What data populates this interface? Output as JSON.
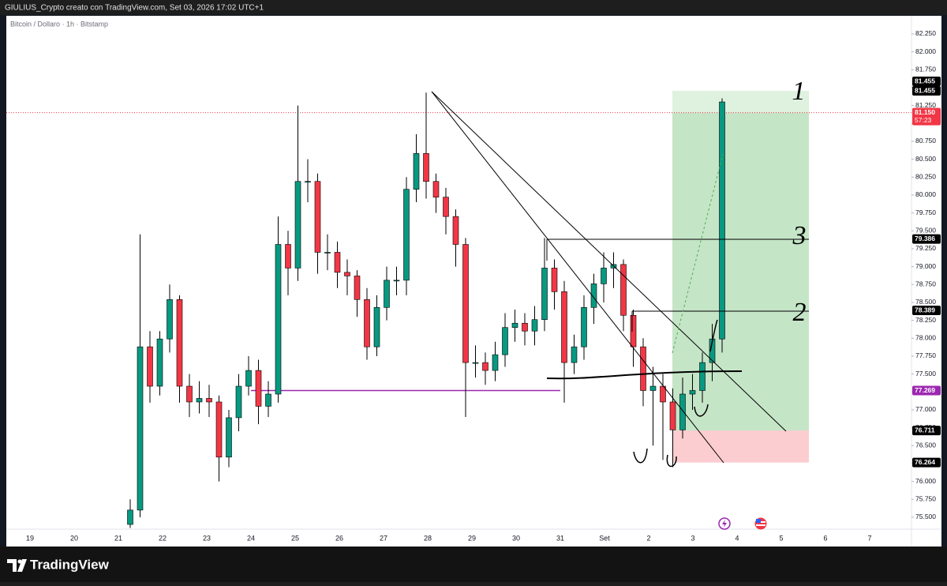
{
  "header": {
    "caption": "GIULIUS_Crypto creato con TradingView.com, Set 03, 2026 17:02 UTC+1"
  },
  "footer": {
    "brand": "TradingView"
  },
  "chart_data": {
    "type": "candlestick",
    "title": "Bitcoin / Dollaro · 1h · Bitstamp",
    "up_color": "#089981",
    "down_color": "#f23645",
    "categories": [
      null,
      null,
      null,
      null,
      null,
      null,
      null,
      null,
      null,
      null,
      null,
      null,
      null,
      null,
      null,
      null,
      null,
      null,
      null,
      null,
      null,
      null,
      null,
      null,
      null,
      null,
      null,
      null,
      null,
      null,
      null,
      null,
      null,
      null,
      null,
      null,
      null,
      null,
      null,
      null,
      null,
      null,
      null,
      null,
      null,
      null,
      null,
      null,
      null,
      null,
      null,
      null,
      null,
      null,
      null,
      null,
      null,
      null,
      null,
      null,
      null
    ],
    "open": [
      75.4,
      75.6,
      77.88,
      77.33,
      77.99,
      78.54,
      77.33,
      77.11,
      77.16,
      77.11,
      76.34,
      76.89,
      77.33,
      77.55,
      77.05,
      77.22,
      79.31,
      78.98,
      80.19,
      80.19,
      79.2,
      79.2,
      78.92,
      78.87,
      78.54,
      77.88,
      78.43,
      78.81,
      78.81,
      80.08,
      80.58,
      80.19,
      79.97,
      79.7,
      79.31,
      77.66,
      77.66,
      77.55,
      77.77,
      78.15,
      78.21,
      78.1,
      78.26,
      78.98,
      78.65,
      77.66,
      77.88,
      78.43,
      78.76,
      78.98,
      79.03,
      78.32,
      77.88,
      77.27,
      77.33,
      77.11,
      76.72,
      77.22,
      77.27,
      77.66,
      77.99
    ],
    "high": [
      75.75,
      79.45,
      78.1,
      78.1,
      78.75,
      78.6,
      77.5,
      77.4,
      77.35,
      77.2,
      77.0,
      77.5,
      77.75,
      77.7,
      77.4,
      79.7,
      79.5,
      81.25,
      80.5,
      80.3,
      79.45,
      79.35,
      79.1,
      78.95,
      78.7,
      78.6,
      79.0,
      79.0,
      80.25,
      80.85,
      81.43,
      80.3,
      80.1,
      79.8,
      79.4,
      77.9,
      77.8,
      77.95,
      78.35,
      78.4,
      78.35,
      78.45,
      79.4,
      79.1,
      78.8,
      78.05,
      78.6,
      78.9,
      79.2,
      79.2,
      79.1,
      78.4,
      78.0,
      77.6,
      77.5,
      77.3,
      77.45,
      77.5,
      77.8,
      78.2,
      81.35
    ],
    "low": [
      75.35,
      75.5,
      77.1,
      77.2,
      77.8,
      77.1,
      76.9,
      76.95,
      76.9,
      76.0,
      76.2,
      76.7,
      77.2,
      76.8,
      76.9,
      77.1,
      78.6,
      78.8,
      79.9,
      78.9,
      78.95,
      78.7,
      78.6,
      78.3,
      77.7,
      77.75,
      78.25,
      78.6,
      78.6,
      79.9,
      79.95,
      79.75,
      79.45,
      79.0,
      76.9,
      77.45,
      77.35,
      77.4,
      77.6,
      77.95,
      77.9,
      77.9,
      78.1,
      78.4,
      77.1,
      77.5,
      77.7,
      78.2,
      78.5,
      78.7,
      78.1,
      77.6,
      77.05,
      76.5,
      76.3,
      76.2,
      76.6,
      77.0,
      77.1,
      77.4,
      77.8
    ],
    "close": [
      75.6,
      77.88,
      77.33,
      77.99,
      78.54,
      77.33,
      77.11,
      77.16,
      77.11,
      76.34,
      76.89,
      77.33,
      77.55,
      77.05,
      77.22,
      79.31,
      78.98,
      80.19,
      80.19,
      79.2,
      79.2,
      78.92,
      78.87,
      78.54,
      77.88,
      78.43,
      78.81,
      78.81,
      80.08,
      80.58,
      80.19,
      79.97,
      79.7,
      79.31,
      77.66,
      77.66,
      77.55,
      77.77,
      78.15,
      78.21,
      78.1,
      78.26,
      78.98,
      78.65,
      77.66,
      77.88,
      78.43,
      78.76,
      78.98,
      79.03,
      78.32,
      77.88,
      77.27,
      77.33,
      77.11,
      76.72,
      77.22,
      77.27,
      77.66,
      77.99,
      81.3
    ],
    "x_labels": [
      "19",
      "20",
      "21",
      "22",
      "23",
      "24",
      "25",
      "26",
      "27",
      "28",
      "29",
      "30",
      "31",
      "Set",
      "2",
      "3",
      "4",
      "5",
      "6",
      "7"
    ],
    "ylim": [
      75.345,
      82.503
    ],
    "yticks": [
      {
        "value": 75.5,
        "label": "75.500"
      },
      {
        "value": 75.75,
        "label": "75.750"
      },
      {
        "value": 76,
        "label": "76.000"
      },
      {
        "value": 76.25,
        "label": "76.250"
      },
      {
        "value": 76.5,
        "label": "76.500"
      },
      {
        "value": 76.75,
        "label": "76.750"
      },
      {
        "value": 77,
        "label": "77.000"
      },
      {
        "value": 77.25,
        "label": "77.250"
      },
      {
        "value": 77.5,
        "label": "77.500"
      },
      {
        "value": 77.75,
        "label": "77.750"
      },
      {
        "value": 78,
        "label": "78.000"
      },
      {
        "value": 78.25,
        "label": "78.250"
      },
      {
        "value": 78.5,
        "label": "78.500"
      },
      {
        "value": 78.75,
        "label": "78.750"
      },
      {
        "value": 79,
        "label": "79.000"
      },
      {
        "value": 79.25,
        "label": "79.250"
      },
      {
        "value": 79.5,
        "label": "79.500"
      },
      {
        "value": 79.75,
        "label": "79.750"
      },
      {
        "value": 80,
        "label": "80.000"
      },
      {
        "value": 80.25,
        "label": "80.250"
      },
      {
        "value": 80.5,
        "label": "80.500"
      },
      {
        "value": 80.75,
        "label": "80.750"
      },
      {
        "value": 81,
        "label": "81.000"
      },
      {
        "value": 81.25,
        "label": "81.250"
      },
      {
        "value": 81.5,
        "label": "81.500"
      },
      {
        "value": 81.75,
        "label": "81.750"
      },
      {
        "value": 82,
        "label": "82.000"
      },
      {
        "value": 82.25,
        "label": "82.250"
      }
    ],
    "grid": false,
    "price_markers": [
      {
        "value": 81.455,
        "label": "81.455",
        "color": "#000000"
      },
      {
        "value": 81.455,
        "label": "81.455",
        "color": "#000000"
      },
      {
        "value": 81.15,
        "label": "81.150",
        "color": "#f23645",
        "countdown": "57:23"
      },
      {
        "value": 79.386,
        "label": "79.386",
        "color": "#000000"
      },
      {
        "value": 78.389,
        "label": "78.389",
        "color": "#000000"
      },
      {
        "value": 77.269,
        "label": "77.269",
        "color": "#9c27b0"
      },
      {
        "value": 76.711,
        "label": "76.711",
        "color": "#000000"
      },
      {
        "value": 76.264,
        "label": "76.264",
        "color": "#000000"
      }
    ],
    "annotations": [
      "1",
      "3",
      "2"
    ]
  }
}
